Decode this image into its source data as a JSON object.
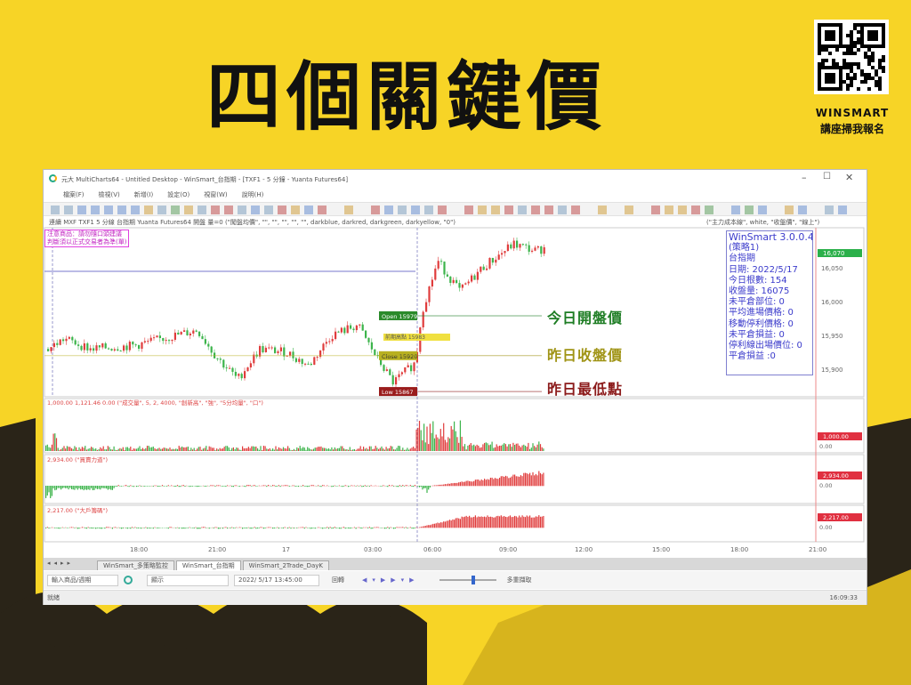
{
  "headline": "四個關鍵價",
  "brand": {
    "name": "WINSMART",
    "cta": "講座掃我報名"
  },
  "window": {
    "title": "元大 MultiCharts64 - Untitled Desktop - WinSmart_台指期 - [TXF1 - 5 分鐘 - Yuanta Futures64]",
    "menu": [
      "檔案(F)",
      "檢視(V)",
      "新增(I)",
      "設定(O)",
      "視窗(W)",
      "說明(H)"
    ],
    "status_line": "連續  MXF  TXF1  5 分線  台指期  Yuanta Futures64  開盤  量=0  (\"闖盤均價\", \"\", \"\", \"\", \"\", \"\", darkblue, darkred, darkgreen, darkyellow, \"0\")",
    "status_line_right": "(\"主力成本線\", white, \"收盤價\", \"線上\")",
    "notice": [
      "注意商品：請勿隨口頭建議",
      "判斷須以正式交易者為準(單)"
    ]
  },
  "chart": {
    "price_axis": [
      "16,050",
      "16,000",
      "15,950",
      "15,900"
    ],
    "last_price": "16,070",
    "levels": {
      "open": {
        "label": "Open 15979",
        "note": "今日開盤價",
        "color": "#1e7d24"
      },
      "close": {
        "label": "Close 15920",
        "note": "昨日收盤價",
        "color": "#a09416"
      },
      "low": {
        "label": "Low 15867",
        "note": "昨日最低點",
        "color": "#8c1b1b"
      }
    },
    "mid_label": "前期高點 15983",
    "info_panel": [
      "WinSmart 3.0.0.4",
      "(策略1)",
      "台指期",
      "日期: 2022/5/17",
      "今日根數: 154",
      "收盤量: 16075",
      "未平倉部位: 0",
      "平均進場價格: 0",
      "移動停利價格: 0",
      "未平倉損益: 0",
      "停利線出場價位: 0",
      "平倉損益 :0"
    ],
    "volume": {
      "header": "1,000.00  1,121.46  0.00  (\"成交量\", 5, 2, 4000, \"創新高\", \"強\", \"5分均量\", \"口\")",
      "axis_value": "1,000.00",
      "zero": "0.00"
    },
    "force": {
      "header": "2,934.00  (\"買賣力道\")",
      "axis_value": "2,934.00",
      "zero": "0.00"
    },
    "chips": {
      "header": "2,217.00  (\"大戶籌碼\")",
      "axis_value": "2,217.00",
      "zero": "0.00"
    },
    "time_axis": [
      "18:00",
      "21:00",
      "17",
      "03:00",
      "06:00",
      "09:00",
      "12:00",
      "15:00",
      "18:00",
      "21:00"
    ]
  },
  "tabs": [
    "WinSmart_多策略監控",
    "WinSmart_台指期",
    "WinSmart_2Trade_DayK"
  ],
  "active_tab": 1,
  "bottom": {
    "symbol_placeholder": "輸入商品/週期",
    "display": "顯示",
    "datetime": "2022/ 5/17 13:45:00",
    "replay": "回轉",
    "multi": "多重擷取"
  },
  "statusbar": {
    "left": "就緒",
    "clock": "16:09:33"
  },
  "colors": {
    "background": "#f7d426",
    "up": "#e03c3c",
    "down": "#3cb44b",
    "info_text": "#3a3acb"
  }
}
